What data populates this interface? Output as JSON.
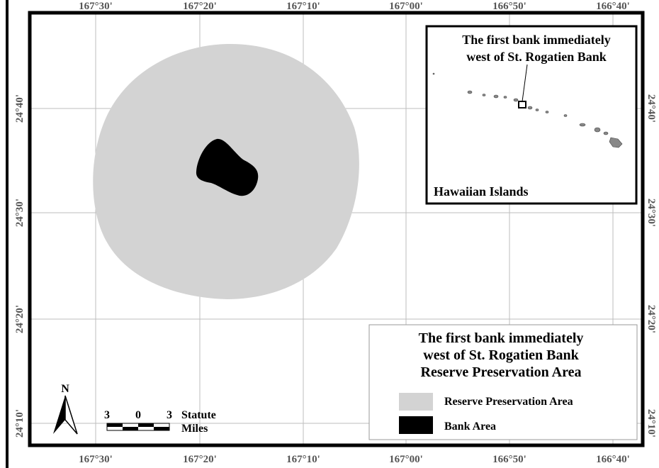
{
  "map": {
    "top_longitude_labels": [
      "167°30'",
      "167°20'",
      "167°10'",
      "167°00'",
      "166°50'",
      "166°40'"
    ],
    "bottom_longitude_labels": [
      "167°30'",
      "167°20'",
      "167°10'",
      "167°00'",
      "166°50'",
      "166°40'"
    ],
    "left_latitude_labels": [
      "24°40'",
      "24°30'",
      "24°20'",
      "24°10'"
    ],
    "right_latitude_labels": [
      "24°40'",
      "24°30'",
      "24°20'",
      "24°10'"
    ]
  },
  "inset": {
    "title_line1": "The first bank immediately",
    "title_line2": "west of St. Rogatien Bank",
    "footer": "Hawaiian Islands"
  },
  "legend": {
    "title_line1": "The first bank immediately",
    "title_line2": "west of St. Rogatien Bank",
    "title_line3": "Reserve Preservation Area",
    "items": [
      {
        "label": "Reserve Preservation Area",
        "color": "#d3d3d3"
      },
      {
        "label": "Bank Area",
        "color": "#000000"
      }
    ]
  },
  "north_arrow": {
    "label": "N"
  },
  "scale_bar": {
    "left_value": "3",
    "middle_value": "0",
    "right_value": "3",
    "unit_line1": "Statute",
    "unit_line2": "Miles"
  },
  "colors": {
    "reserve": "#d3d3d3",
    "bank": "#000000",
    "grid": "#bdbdbd",
    "frame": "#000000"
  }
}
